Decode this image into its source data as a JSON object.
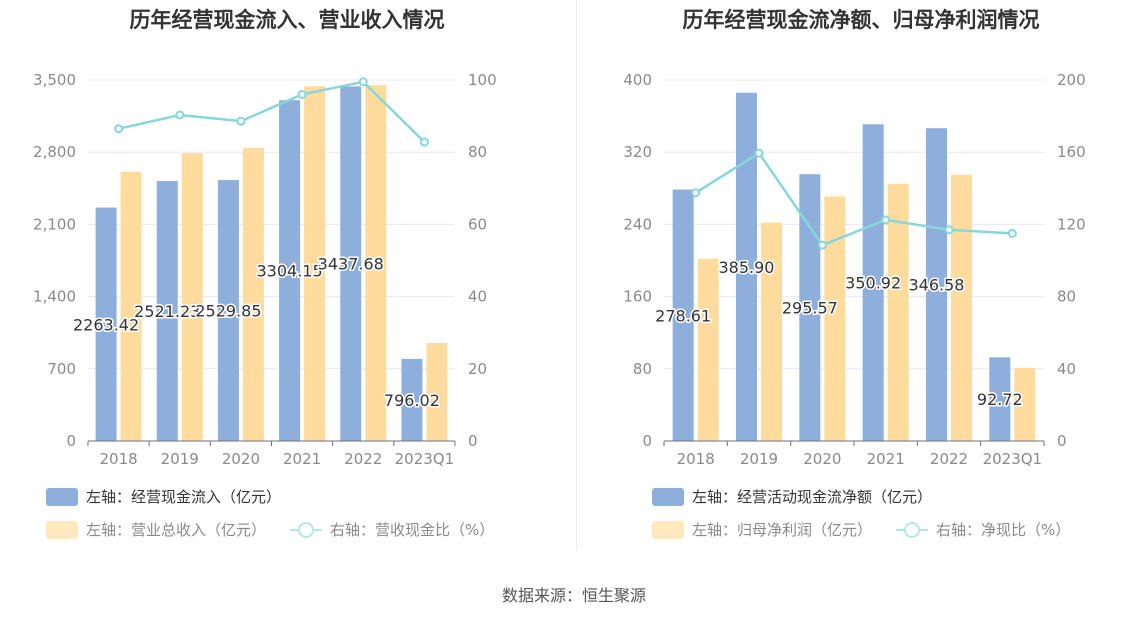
{
  "source_label": "数据来源：恒生聚源",
  "chart_data": [
    {
      "type": "bar",
      "title": "历年经营现金流入、营业收入情况",
      "categories": [
        "2018",
        "2019",
        "2020",
        "2021",
        "2022",
        "2023Q1"
      ],
      "left_axis": {
        "min": 0,
        "max": 3500,
        "ticks": [
          "0",
          "700",
          "1,400",
          "2,100",
          "2,800",
          "3,500"
        ]
      },
      "right_axis": {
        "min": 0,
        "max": 100,
        "ticks": [
          "0",
          "20",
          "40",
          "60",
          "80",
          "100"
        ]
      },
      "grid": true,
      "series": [
        {
          "name": "左轴：经营现金流入（亿元）",
          "type": "bar",
          "axis": "left",
          "color": "#8eaedb",
          "values": [
            2263.42,
            2521.23,
            2529.85,
            3304.15,
            3437.68,
            796.02
          ],
          "labels": [
            "2263.42",
            "2521.23",
            "2529.85",
            "3304.15",
            "3437.68",
            "796.02"
          ]
        },
        {
          "name": "左轴：营业总收入（亿元）",
          "type": "bar",
          "axis": "left",
          "color": "#ffdc9e",
          "values": [
            2610,
            2790,
            2840,
            3440,
            3450,
            950
          ]
        },
        {
          "name": "右轴：营收现金比（%）",
          "type": "line",
          "axis": "right",
          "color": "#86d6dc",
          "values": [
            86.5,
            90.3,
            88.6,
            96,
            99.5,
            82.8
          ]
        }
      ],
      "legend": "bottom"
    },
    {
      "type": "bar",
      "title": "历年经营现金流净额、归母净利润情况",
      "categories": [
        "2018",
        "2019",
        "2020",
        "2021",
        "2022",
        "2023Q1"
      ],
      "left_axis": {
        "min": 0,
        "max": 400,
        "ticks": [
          "0",
          "80",
          "160",
          "240",
          "320",
          "400"
        ]
      },
      "right_axis": {
        "min": 0,
        "max": 200,
        "ticks": [
          "0",
          "40",
          "80",
          "120",
          "160",
          "200"
        ]
      },
      "grid": true,
      "series": [
        {
          "name": "左轴：经营活动现金流净额（亿元）",
          "type": "bar",
          "axis": "left",
          "color": "#8eaedb",
          "values": [
            278.61,
            385.9,
            295.57,
            350.92,
            346.58,
            92.72
          ],
          "labels": [
            "278.61",
            "385.90",
            "295.57",
            "350.92",
            "346.58",
            "92.72"
          ]
        },
        {
          "name": "左轴：归母净利润（亿元）",
          "type": "bar",
          "axis": "left",
          "color": "#ffdc9e",
          "values": [
            202,
            242,
            271,
            285,
            295,
            81
          ]
        },
        {
          "name": "右轴：净现比（%）",
          "type": "line",
          "axis": "right",
          "color": "#86d6dc",
          "values": [
            137.5,
            159.5,
            108.5,
            122.5,
            117,
            115
          ]
        }
      ],
      "legend": "bottom"
    }
  ]
}
